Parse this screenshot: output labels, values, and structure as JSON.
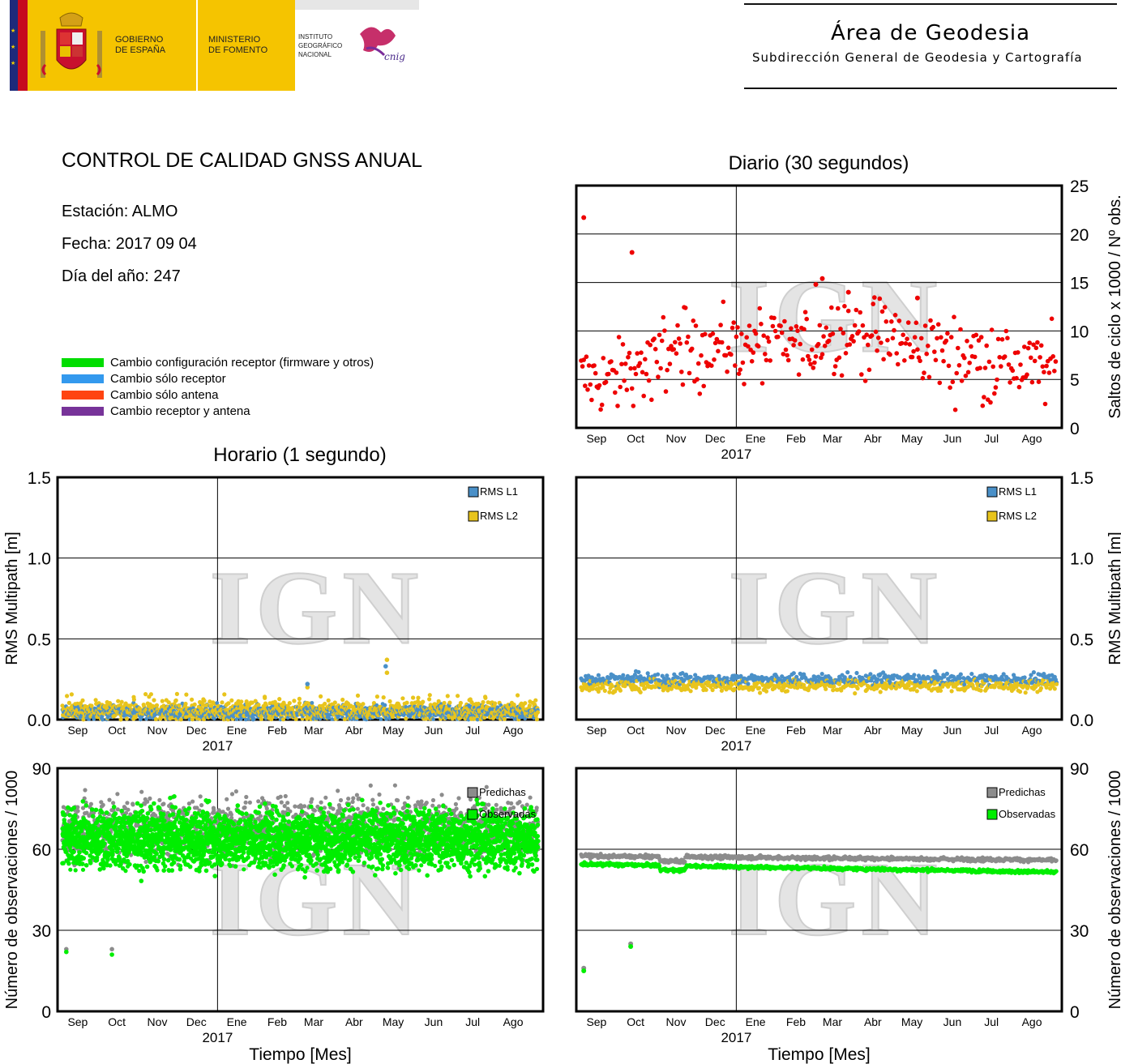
{
  "header": {
    "gobierno": [
      "GOBIERNO",
      "DE ESPAÑA"
    ],
    "ministerio": [
      "MINISTERIO",
      "DE FOMENTO"
    ],
    "instituto": [
      "INSTITUTO",
      "GEOGRÁFICO",
      "NACIONAL"
    ],
    "cnig": "cnig",
    "area_title": "Área de Geodesia",
    "area_subtitle": "Subdirección General de Geodesia y Cartografía"
  },
  "report": {
    "title": "CONTROL DE CALIDAD GNSS ANUAL",
    "station": "Estación: ALMO",
    "date": "Fecha: 2017 09 04",
    "doy": "Día del año: 247"
  },
  "change_legend": [
    {
      "label": "Cambio configuración receptor (firmware y otros)",
      "color": "#00dd00"
    },
    {
      "label": "Cambio sólo receptor",
      "color": "#3399ee"
    },
    {
      "label": "Cambio sólo antena",
      "color": "#ff4411"
    },
    {
      "label": "Cambio receptor y antena",
      "color": "#773399"
    }
  ],
  "watermark": "IGN",
  "colors": {
    "l1": "#4a90c8",
    "l2": "#e8c41c",
    "slips": "#ee0000",
    "predicted": "#8c8c8c",
    "observed": "#00ee00"
  },
  "panel_titles": {
    "daily": "Diario (30 segundos)",
    "hourly": "Horario (1 segundo)"
  },
  "chart_data": [
    {
      "id": "daily-cycle-slips",
      "type": "scatter",
      "x_tick_labels": [
        "Sep",
        "Oct",
        "Nov",
        "Dec",
        "Ene",
        "Feb",
        "Mar",
        "Abr",
        "May",
        "Jun",
        "Jul",
        "Ago"
      ],
      "year_label": "2017",
      "ylabel": "Saltos de ciclo x 1000 / Nº obs.",
      "ylim": [
        0,
        25
      ],
      "y_ticks": [
        0,
        5,
        10,
        15,
        20,
        25
      ],
      "grid": true,
      "series": [
        {
          "values_by_month": [
            5.0,
            6.2,
            8.0,
            8.4,
            8.5,
            8.5,
            9.8,
            9.5,
            8.4,
            7.5,
            6.8,
            6.2
          ],
          "highlights": [
            {
              "day": 2,
              "value": 21.7
            },
            {
              "day": 39,
              "value": 18.1
            },
            {
              "day": 185,
              "value": 15.4
            },
            {
              "day": 180,
              "value": 14.8
            },
            {
              "day": 205,
              "value": 14.0
            },
            {
              "day": 258,
              "value": 13.4
            }
          ]
        }
      ]
    },
    {
      "id": "hourly-multipath",
      "type": "scatter",
      "x_tick_labels": [
        "Sep",
        "Oct",
        "Nov",
        "Dec",
        "Ene",
        "Feb",
        "Mar",
        "Abr",
        "May",
        "Jun",
        "Jul",
        "Ago"
      ],
      "year_label": "2017",
      "ylabel": "RMS Multipath [m]",
      "ylim": [
        0,
        1.5
      ],
      "y_tick_labels": [
        "0.0",
        "0.5",
        "1.0",
        "1.5"
      ],
      "grid": true,
      "legend": "top-right",
      "series": [
        {
          "name": "RMS L1",
          "typical": 0.05,
          "max": 0.33
        },
        {
          "name": "RMS L2",
          "typical": 0.06,
          "max": 0.37
        }
      ]
    },
    {
      "id": "daily-multipath",
      "type": "scatter",
      "x_tick_labels": [
        "Sep",
        "Oct",
        "Nov",
        "Dec",
        "Ene",
        "Feb",
        "Mar",
        "Abr",
        "May",
        "Jun",
        "Jul",
        "Ago"
      ],
      "year_label": "2017",
      "ylabel": "RMS Multipath [m]",
      "ylim": [
        0,
        1.5
      ],
      "y_tick_labels": [
        "0.0",
        "0.5",
        "1.0",
        "1.5"
      ],
      "grid": true,
      "legend": "top-right",
      "series": [
        {
          "name": "RMS L1",
          "typical": 0.25
        },
        {
          "name": "RMS L2",
          "typical": 0.21
        }
      ]
    },
    {
      "id": "hourly-observations",
      "type": "scatter",
      "x_tick_labels": [
        "Sep",
        "Oct",
        "Nov",
        "Dec",
        "Ene",
        "Feb",
        "Mar",
        "Abr",
        "May",
        "Jun",
        "Jul",
        "Ago"
      ],
      "year_label": "2017",
      "xlabel": "Tiempo [Mes]",
      "ylabel": "Número de observaciones / 1000",
      "ylim": [
        0,
        90
      ],
      "y_ticks": [
        0,
        30,
        60,
        90
      ],
      "grid": true,
      "legend": "top-right",
      "series": [
        {
          "name": "Predichas",
          "range": [
            58,
            86
          ]
        },
        {
          "name": "Observadas",
          "range": [
            48,
            80
          ]
        }
      ],
      "outliers": [
        {
          "day": 3,
          "predicted": 23,
          "observed": 22
        },
        {
          "day": 38,
          "predicted": 23,
          "observed": 21
        }
      ]
    },
    {
      "id": "daily-observations",
      "type": "scatter",
      "x_tick_labels": [
        "Sep",
        "Oct",
        "Nov",
        "Dec",
        "Ene",
        "Feb",
        "Mar",
        "Abr",
        "May",
        "Jun",
        "Jul",
        "Ago"
      ],
      "year_label": "2017",
      "xlabel": "Tiempo [Mes]",
      "ylabel": "Número de observaciones / 1000",
      "ylim": [
        0,
        90
      ],
      "y_ticks": [
        0,
        30,
        60,
        90
      ],
      "grid": true,
      "legend": "top-right",
      "series": [
        {
          "name": "Predichas",
          "start": 57.5,
          "end": 56.0
        },
        {
          "name": "Observadas",
          "start": 54.5,
          "end": 51.5
        }
      ],
      "outliers": [
        {
          "day": 2,
          "predicted": 16,
          "observed": 15
        },
        {
          "day": 38,
          "predicted": 25,
          "observed": 24
        }
      ]
    }
  ]
}
